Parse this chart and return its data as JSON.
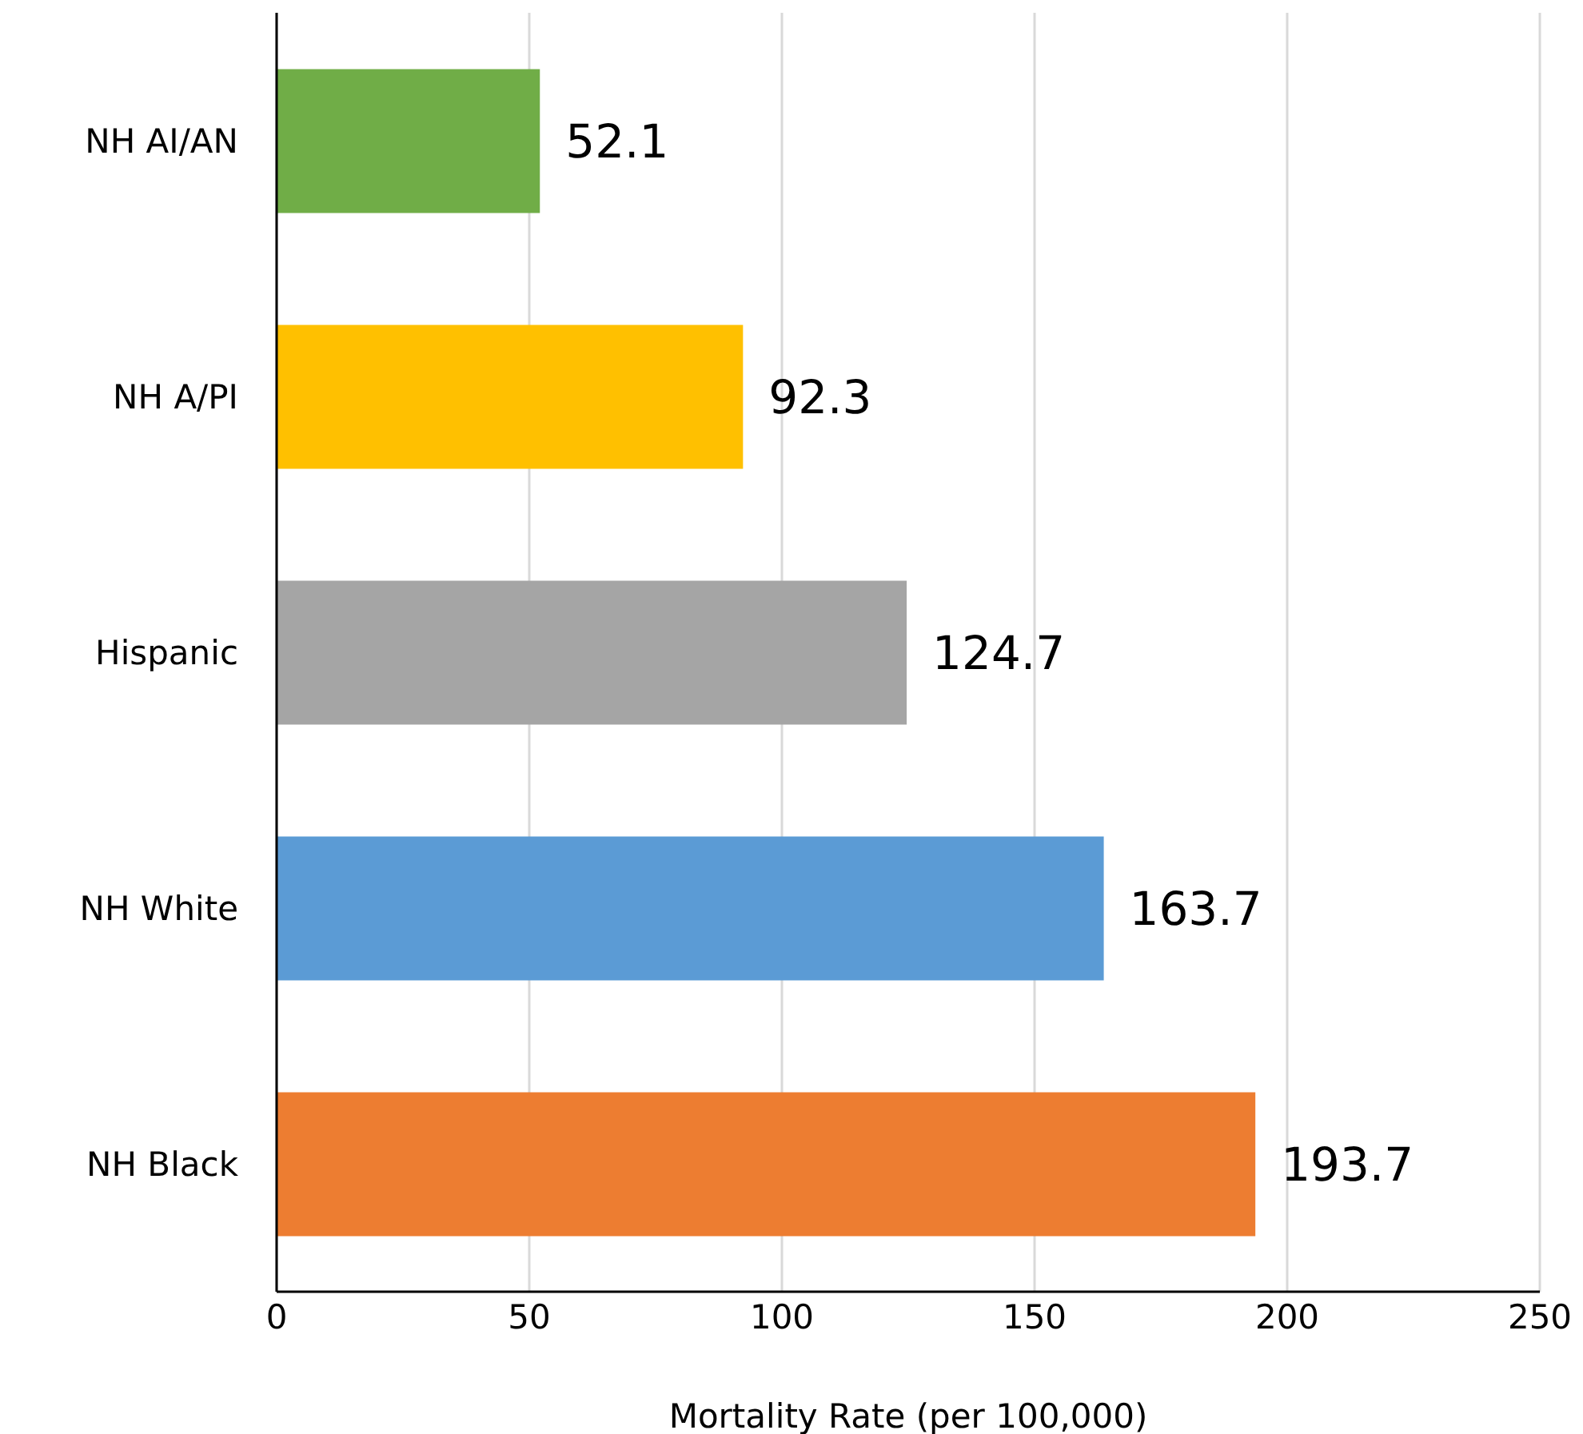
{
  "chart_data": {
    "type": "bar",
    "orientation": "horizontal",
    "categories": [
      "NH AI/AN",
      "NH A/PI",
      "Hispanic",
      "NH White",
      "NH Black"
    ],
    "values": [
      52.1,
      92.3,
      124.7,
      163.7,
      193.7
    ],
    "colors": [
      "#70ad47",
      "#ffc000",
      "#a5a5a5",
      "#5b9bd5",
      "#ed7d31"
    ],
    "xlabel": "Mortality Rate (per 100,000)",
    "xlim": [
      0,
      250
    ],
    "xticks": [
      0,
      50,
      100,
      150,
      200,
      250
    ],
    "grid": "x",
    "data_labels": true
  }
}
